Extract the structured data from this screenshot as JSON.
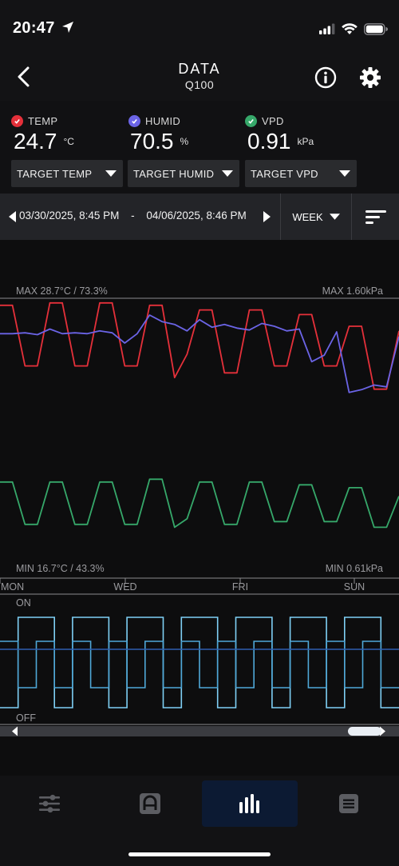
{
  "status": {
    "time": "20:47"
  },
  "header": {
    "title": "DATA",
    "device": "Q100"
  },
  "readings": [
    {
      "label": "TEMP",
      "value": "24.7",
      "unit": "°C",
      "color": "#e5303a"
    },
    {
      "label": "HUMID",
      "value": "70.5",
      "unit": "%",
      "color": "#6b64e6"
    },
    {
      "label": "VPD",
      "value": "0.91",
      "unit": "kPa",
      "color": "#36a86a"
    }
  ],
  "targets": [
    "TARGET TEMP",
    "TARGET HUMID",
    "TARGET VPD"
  ],
  "range": {
    "start": "03/30/2025, 8:45 PM",
    "separator": "-",
    "end": "04/06/2025, 8:46 PM",
    "period": "WEEK"
  },
  "chart_data": {
    "type": "line",
    "max_label_left": "MAX 28.7°C / 73.3%",
    "max_label_right": "MAX 1.60kPa",
    "min_label_left": "MIN 16.7°C / 43.3%",
    "min_label_right": "MIN 0.61kPa",
    "x_ticks": [
      "MON",
      "WED",
      "FRI",
      "SUN"
    ],
    "temp_range_c": [
      16.7,
      28.7
    ],
    "humid_range_pct": [
      43.3,
      73.3
    ],
    "vpd_range_kpa": [
      0.61,
      1.6
    ],
    "series": [
      {
        "name": "TEMP",
        "color": "#e5303a",
        "values": [
          28.4,
          28.4,
          25.8,
          25.8,
          28.5,
          28.5,
          25.8,
          25.8,
          28.5,
          28.5,
          25.8,
          25.8,
          28.4,
          28.4,
          25.3,
          26.3,
          28.2,
          28.2,
          25.5,
          25.5,
          28.2,
          28.2,
          25.8,
          25.8,
          28.0,
          28.0,
          25.8,
          25.8,
          27.5,
          27.5,
          24.8,
          24.8,
          27.3
        ]
      },
      {
        "name": "HUMID",
        "color": "#6b64e6",
        "values": [
          69.5,
          69.5,
          69.6,
          69.4,
          70.0,
          69.5,
          69.6,
          69.5,
          69.8,
          69.6,
          68.5,
          69.5,
          71.5,
          70.8,
          70.5,
          69.8,
          71.0,
          70.2,
          70.5,
          70.1,
          69.9,
          70.6,
          70.3,
          69.8,
          70.0,
          66.5,
          67.2,
          69.7,
          63.2,
          63.5,
          64.0,
          63.8,
          69.2
        ]
      },
      {
        "name": "VPD",
        "color": "#36a86a",
        "values": [
          0.95,
          0.95,
          0.8,
          0.8,
          0.95,
          0.95,
          0.8,
          0.8,
          0.95,
          0.95,
          0.8,
          0.8,
          0.96,
          0.96,
          0.79,
          0.82,
          0.95,
          0.95,
          0.8,
          0.8,
          0.95,
          0.95,
          0.81,
          0.81,
          0.94,
          0.94,
          0.81,
          0.81,
          0.93,
          0.93,
          0.79,
          0.79,
          0.9
        ]
      }
    ],
    "onoff": {
      "label_on": "ON",
      "label_off": "OFF",
      "series": [
        {
          "name": "device-1",
          "color": "#7fd0f5",
          "states": [
            0,
            1,
            1,
            0,
            1,
            1,
            0,
            1,
            1,
            0,
            1,
            1,
            0,
            1,
            1,
            0,
            1,
            1,
            0,
            1,
            1,
            0
          ]
        },
        {
          "name": "device-2",
          "color": "#4fa8d8",
          "states": [
            1,
            0,
            1,
            0,
            1,
            0,
            1,
            0,
            1,
            0,
            1,
            0,
            1,
            0,
            1,
            0,
            1,
            0,
            1,
            0,
            1,
            0
          ]
        }
      ]
    }
  },
  "tabs": [
    {
      "name": "controls",
      "icon": "sliders-icon"
    },
    {
      "name": "mode",
      "icon": "mode-a-icon"
    },
    {
      "name": "data",
      "icon": "bar-chart-icon",
      "active": true
    },
    {
      "name": "log",
      "icon": "list-icon"
    }
  ]
}
